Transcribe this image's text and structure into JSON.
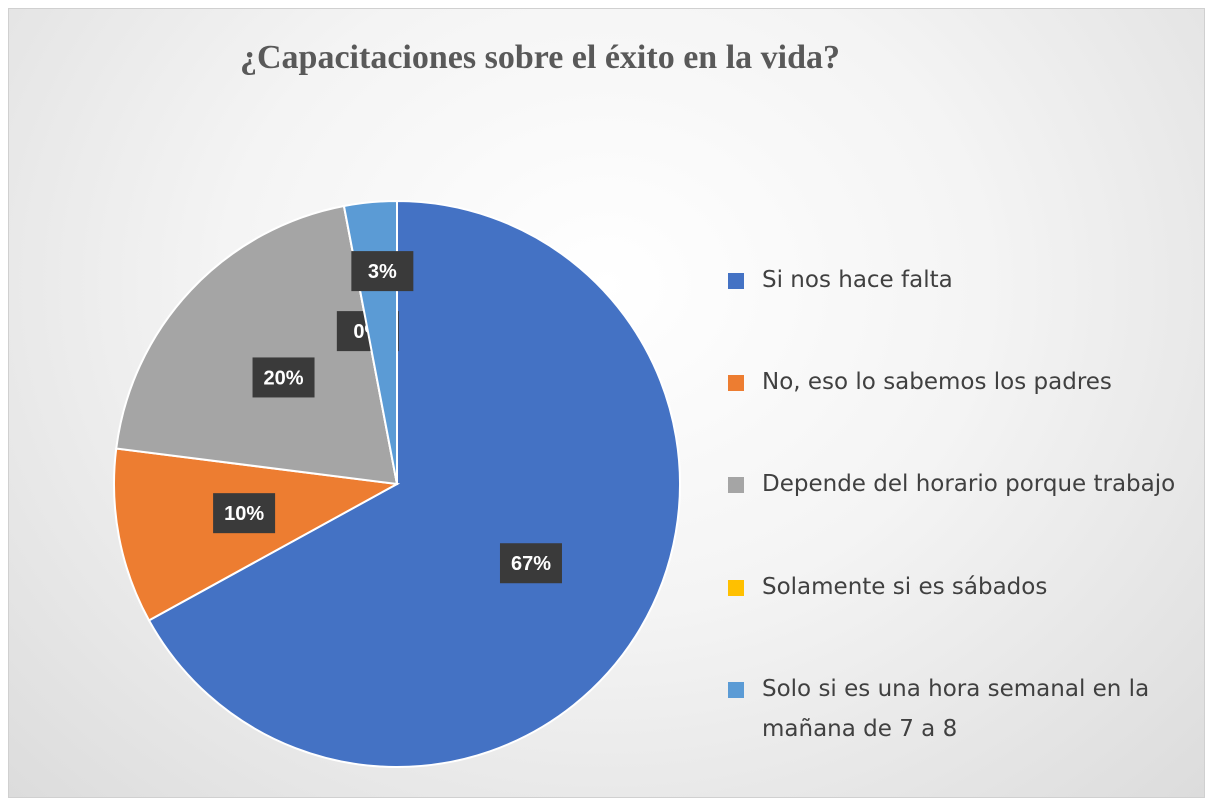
{
  "chart_data": {
    "type": "pie",
    "title": "¿Capacitaciones sobre el éxito en la vida?",
    "categories": [
      "Si nos hace falta",
      "No, eso lo sabemos los padres",
      "Depende del horario porque trabajo",
      "Solamente si es sábados",
      "Solo si es una hora semanal en la mañana de 7 a 8"
    ],
    "values": [
      67,
      10,
      20,
      0,
      3
    ],
    "value_labels": [
      "67%",
      "10%",
      "20%",
      "0%",
      "3%"
    ],
    "colors": [
      "#4472c4",
      "#ed7d31",
      "#a5a5a5",
      "#ffc000",
      "#5b9bd5"
    ],
    "legend": "right"
  }
}
